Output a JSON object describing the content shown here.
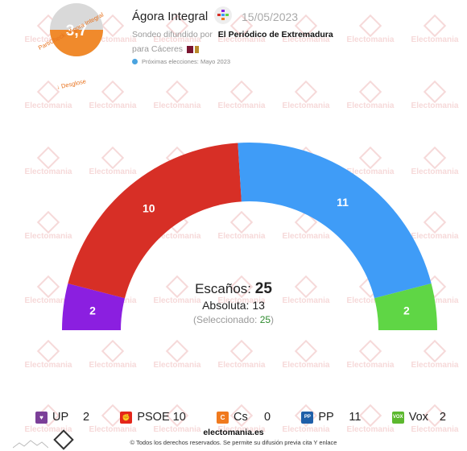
{
  "header": {
    "score": "3,7",
    "score_fraction": 0.5,
    "score_caption": "PartiCheck - Ágora Integral",
    "breakdown_link": "↓ Desglose",
    "pollster": "Ágora Integral",
    "date": "15/05/2023",
    "survey_prefix": "Sondeo difundido por",
    "media": "El Periódico de Extremadura",
    "region_line": "para Cáceres",
    "next_election": "Próximas elecciones: Mayo 2023"
  },
  "watermark_text": "Electomania",
  "summary": {
    "seats_label": "Escaños:",
    "seats_total": "25",
    "majority_label": "Absoluta:",
    "majority_value": "13",
    "selected_open": "(Seleccionado:",
    "selected_value": "25",
    "selected_close": ")"
  },
  "chart_data": {
    "type": "parliament-arc",
    "total_seats": 25,
    "majority": 13,
    "series": [
      {
        "name": "UP",
        "seats": 2,
        "color": "#8b1fe0",
        "icon_color": "#7b3f98"
      },
      {
        "name": "PSOE",
        "seats": 10,
        "color": "#d72f26",
        "icon_color": "#e4261a"
      },
      {
        "name": "Cs",
        "seats": 0,
        "color": "#f07a1e",
        "icon_color": "#f07a1e"
      },
      {
        "name": "PP",
        "seats": 11,
        "color": "#3f9cf7",
        "icon_color": "#1f5fa8"
      },
      {
        "name": "Vox",
        "seats": 2,
        "color": "#5fd645",
        "icon_color": "#5cb82e"
      }
    ]
  },
  "legend": [
    {
      "name": "UP",
      "seats": "2",
      "color": "#7b3f98",
      "icon": "heart-icon",
      "glyph": "♥"
    },
    {
      "name": "PSOE",
      "seats": "10",
      "color": "#e4261a",
      "icon": "fist-rose-icon",
      "glyph": "✊"
    },
    {
      "name": "Cs",
      "seats": "0",
      "color": "#f07a1e",
      "icon": "cs-icon",
      "glyph": "C"
    },
    {
      "name": "PP",
      "seats": "11",
      "color": "#1f5fa8",
      "icon": "pp-icon",
      "glyph": "PP"
    },
    {
      "name": "Vox",
      "seats": "2",
      "color": "#5cb82e",
      "icon": "vox-icon",
      "glyph": "VOX"
    }
  ],
  "footer": {
    "site": "electomania.es",
    "copyright": "© Todos los derechos reservados. Se permite su difusión previa cita Y enlace"
  }
}
